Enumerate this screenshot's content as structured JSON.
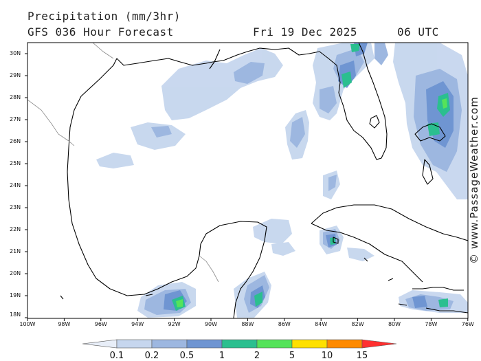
{
  "header": {
    "line1": "Precipitation (mm/3hr)",
    "line2": "GFS 036 Hour Forecast",
    "date": "Fri 19 Dec 2025",
    "time": "06 UTC"
  },
  "credit": "© www.PassageWeather.com",
  "lat_labels": [
    "30N",
    "29N",
    "28N",
    "27N",
    "26N",
    "25N",
    "24N",
    "23N",
    "22N",
    "21N",
    "20N",
    "19N",
    "18N"
  ],
  "lon_labels": [
    "100W",
    "98W",
    "96W",
    "94W",
    "92W",
    "90W",
    "88W",
    "86W",
    "84W",
    "82W",
    "80W",
    "78W",
    "76W"
  ],
  "colorbar": {
    "labels": [
      "0.1",
      "0.2",
      "0.5",
      "1",
      "2",
      "5",
      "10",
      "15"
    ],
    "colors": [
      "#e8eef8",
      "#c6d6ee",
      "#9db7e0",
      "#6f95d2",
      "#2bbf8f",
      "#55e35a",
      "#ffe000",
      "#ff8a00",
      "#ff3030"
    ]
  },
  "map": {
    "land_color": "#ffffff",
    "coast_color": "#000000"
  }
}
